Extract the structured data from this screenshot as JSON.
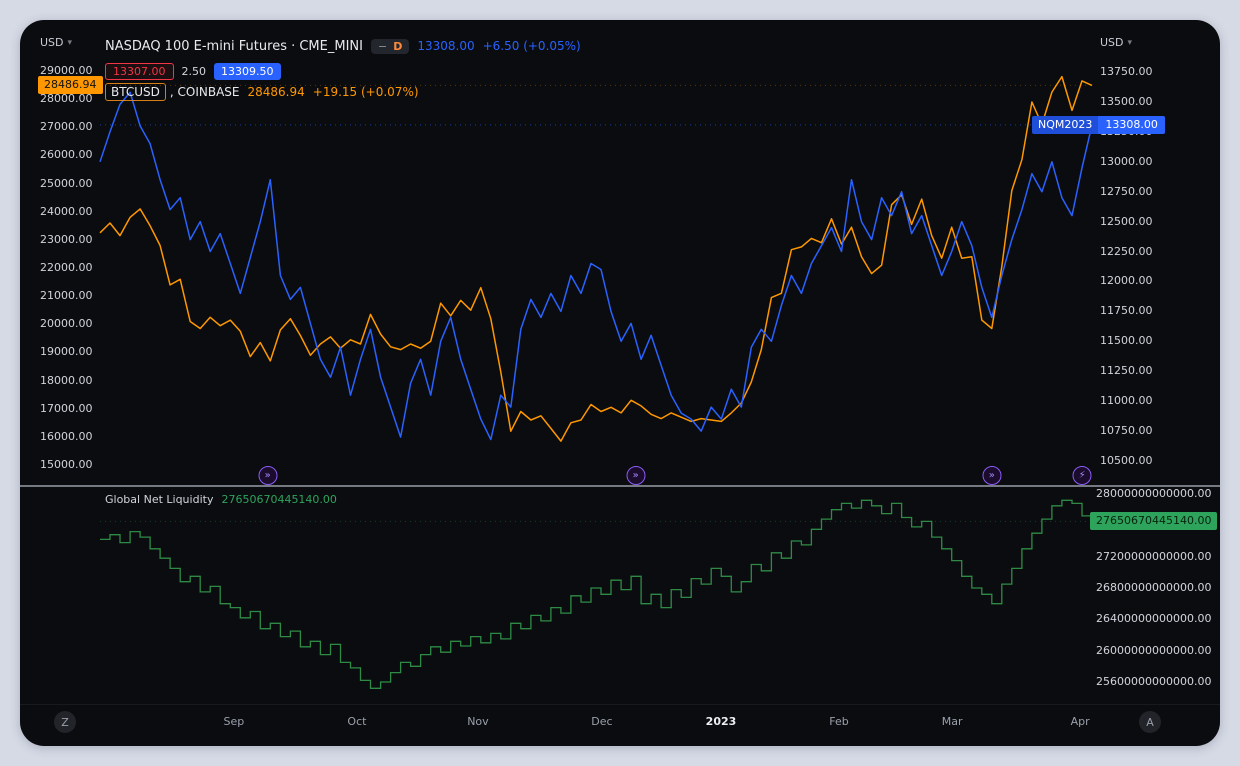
{
  "window": {
    "background": "#d6dae5",
    "panel_background": "#0b0c0f"
  },
  "axes": {
    "left_unit": "USD",
    "right_unit": "USD",
    "unit_caret": "▾",
    "left_ticks": [
      "29000.00",
      "28000.00",
      "27000.00",
      "26000.00",
      "25000.00",
      "24000.00",
      "23000.00",
      "22000.00",
      "21000.00",
      "20000.00",
      "19000.00",
      "18000.00",
      "17000.00",
      "16000.00",
      "15000.00"
    ],
    "right_ticks": [
      "13750.00",
      "13500.00",
      "13250.00",
      "13000.00",
      "12750.00",
      "12500.00",
      "12250.00",
      "12000.00",
      "11750.00",
      "11500.00",
      "11250.00",
      "11000.00",
      "10750.00",
      "10500.00"
    ],
    "liq_ticks": [
      "28000000000000.00",
      "27200000000000.00",
      "26800000000000.00",
      "26400000000000.00",
      "26000000000000.00",
      "25600000000000.00"
    ],
    "left_badge": "28486.94",
    "right_badge_symbol": "NQM2023",
    "right_badge_price": "13308.00",
    "liq_badge": "27650670445140.00",
    "time_labels": [
      {
        "label": "Sep",
        "f": 0.135
      },
      {
        "label": "Oct",
        "f": 0.259
      },
      {
        "label": "Nov",
        "f": 0.381
      },
      {
        "label": "Dec",
        "f": 0.506
      },
      {
        "label": "2023",
        "f": 0.626,
        "major": true
      },
      {
        "label": "Feb",
        "f": 0.745
      },
      {
        "label": "Mar",
        "f": 0.859
      },
      {
        "label": "Apr",
        "f": 0.988
      }
    ]
  },
  "legend": {
    "title": "NASDAQ 100 E-mini Futures · CME_MINI",
    "interval_dash": "−",
    "interval": "D",
    "price": "13308.00",
    "change": "+6.50 (+0.05%)",
    "bid": "13307.00",
    "spread": "2.50",
    "ask": "13309.50",
    "symbol2": "BTCUSD",
    "symbol2_exchange": ", COINBASE",
    "price2": "28486.94",
    "change2": "+19.15 (+0.07%)"
  },
  "pane2": {
    "title": "Global Net Liquidity",
    "value": "27650670445140.00"
  },
  "corner_buttons": {
    "left": "Z",
    "right": "A"
  },
  "markers": [
    {
      "icon": "chevrons-right-icon",
      "f": 0.169
    },
    {
      "icon": "chevrons-right-icon",
      "f": 0.54
    },
    {
      "icon": "chevrons-right-icon",
      "f": 0.899
    },
    {
      "icon": "flash-icon",
      "f": 0.99
    }
  ],
  "icon_glyphs": {
    "chevrons-right-icon": "»",
    "flash-icon": "⚡"
  },
  "colors": {
    "nq_blue": "#2962FF",
    "btc_orange": "#FF9800",
    "bid_red": "#F23645",
    "liq_green": "#2E8B46",
    "liq_badge_green": "#2EA35C",
    "text": "#d1d4dc"
  },
  "chart_data": [
    {
      "type": "line",
      "title": "NASDAQ 100 E-mini Futures · CME_MINI with BTCUSD COINBASE overlay",
      "x_start": "2022-08-15",
      "x_end": "2023-04-07",
      "x_tick_labels": [
        "Sep",
        "Oct",
        "Nov",
        "Dec",
        "2023",
        "Feb",
        "Mar",
        "Apr"
      ],
      "left_axis": {
        "label": "BTCUSD (USD)",
        "min": 15000,
        "max": 29000,
        "tick_step": 1000
      },
      "right_axis": {
        "label": "NQ futures (USD)",
        "min": 10500,
        "max": 13750,
        "tick_step": 250
      },
      "grid": false,
      "legend_position": "top-left",
      "series": [
        {
          "name": "NQM2023 NASDAQ 100 E-mini Futures",
          "axis": "right",
          "color": "#2962FF",
          "last": 13308.0,
          "change": "+6.50 (+0.05%)",
          "values": [
            13000,
            13250,
            13480,
            13580,
            13300,
            13150,
            12850,
            12600,
            12700,
            12350,
            12500,
            12250,
            12400,
            12150,
            11900,
            12200,
            12500,
            12850,
            12050,
            11850,
            11950,
            11650,
            11350,
            11200,
            11450,
            11050,
            11350,
            11600,
            11200,
            10950,
            10700,
            11150,
            11350,
            11050,
            11500,
            11700,
            11350,
            11100,
            10850,
            10680,
            11050,
            10950,
            11600,
            11850,
            11700,
            11900,
            11750,
            12050,
            11900,
            12150,
            12100,
            11750,
            11500,
            11650,
            11350,
            11550,
            11300,
            11050,
            10900,
            10850,
            10750,
            10950,
            10850,
            11100,
            10950,
            11450,
            11600,
            11500,
            11800,
            12050,
            11900,
            12150,
            12300,
            12450,
            12250,
            12850,
            12500,
            12350,
            12700,
            12550,
            12750,
            12400,
            12550,
            12300,
            12050,
            12250,
            12500,
            12300,
            11950,
            11700,
            12050,
            12350,
            12600,
            12900,
            12750,
            13000,
            12700,
            12550,
            12950,
            13308
          ]
        },
        {
          "name": "BTCUSD COINBASE",
          "axis": "left",
          "color": "#FF9800",
          "last": 28486.94,
          "change": "+19.15 (+0.07%)",
          "values": [
            23250,
            23600,
            23150,
            23800,
            24100,
            23500,
            22800,
            21400,
            21600,
            20100,
            19850,
            20250,
            19950,
            20150,
            19750,
            18850,
            19350,
            18700,
            19800,
            20200,
            19600,
            18900,
            19300,
            19550,
            19150,
            19450,
            19300,
            20350,
            19650,
            19200,
            19100,
            19300,
            19150,
            19400,
            20750,
            20300,
            20850,
            20500,
            21300,
            20200,
            18300,
            16200,
            16900,
            16600,
            16750,
            16300,
            15850,
            16500,
            16600,
            17150,
            16900,
            17050,
            16850,
            17300,
            17100,
            16800,
            16650,
            16850,
            16700,
            16550,
            16650,
            16600,
            16550,
            16850,
            17200,
            17950,
            19100,
            20950,
            21100,
            22650,
            22750,
            23050,
            22900,
            23750,
            22850,
            23450,
            22400,
            21800,
            22100,
            24250,
            24600,
            23550,
            24450,
            23150,
            22350,
            23450,
            22350,
            22400,
            20150,
            19850,
            22050,
            24750,
            25850,
            27900,
            27100,
            28250,
            28800,
            27600,
            28650,
            28486.94
          ]
        }
      ]
    },
    {
      "type": "line",
      "title": "Global Net Liquidity",
      "value_unit": 1000000000000,
      "right_axis": {
        "min": 25500000000000,
        "max": 28100000000000
      },
      "grid": false,
      "series": [
        {
          "name": "Global Net Liquidity",
          "color": "#2E8B46",
          "last": 27.65067044514,
          "last_display": "27650670445140.00",
          "values": [
            27.42,
            27.48,
            27.38,
            27.52,
            27.45,
            27.3,
            27.18,
            27.05,
            26.88,
            26.95,
            26.75,
            26.82,
            26.6,
            26.55,
            26.42,
            26.5,
            26.28,
            26.35,
            26.18,
            26.25,
            26.05,
            26.12,
            25.95,
            26.08,
            25.85,
            25.78,
            25.62,
            25.52,
            25.6,
            25.72,
            25.85,
            25.8,
            25.95,
            26.05,
            25.98,
            26.12,
            26.06,
            26.18,
            26.1,
            26.22,
            26.15,
            26.35,
            26.28,
            26.45,
            26.38,
            26.55,
            26.48,
            26.7,
            26.62,
            26.8,
            26.72,
            26.9,
            26.78,
            26.95,
            26.6,
            26.72,
            26.55,
            26.78,
            26.68,
            26.92,
            26.85,
            27.05,
            26.95,
            26.75,
            26.88,
            27.1,
            27.02,
            27.25,
            27.18,
            27.4,
            27.35,
            27.55,
            27.68,
            27.8,
            27.88,
            27.82,
            27.92,
            27.85,
            27.75,
            27.88,
            27.7,
            27.58,
            27.65,
            27.45,
            27.3,
            27.15,
            26.95,
            26.8,
            26.72,
            26.6,
            26.85,
            27.05,
            27.3,
            27.5,
            27.68,
            27.85,
            27.92,
            27.88,
            27.72,
            27.65067044514
          ]
        }
      ]
    }
  ]
}
